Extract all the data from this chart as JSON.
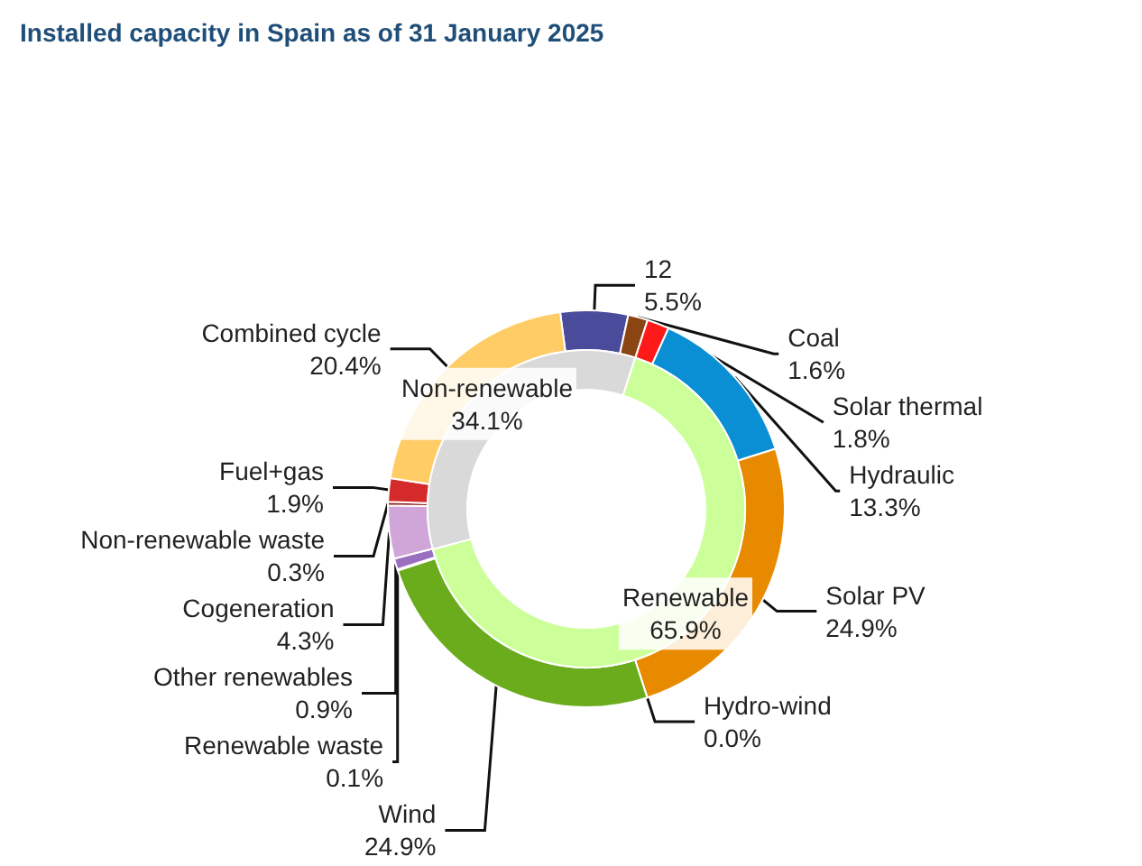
{
  "chart_data": [
    {
      "type": "donut",
      "title": "Installed capacity in Spain as of 31 January 2025",
      "categories": [
        "12",
        "Coal",
        "Solar thermal",
        "Hydraulic",
        "Solar PV",
        "Hydro-wind",
        "Wind",
        "Renewable waste",
        "Other renewables",
        "Cogeneration",
        "Non-renewable waste",
        "Fuel+gas",
        "Combined cycle"
      ],
      "values": [
        5.5,
        1.6,
        1.8,
        13.3,
        24.9,
        0.0,
        24.9,
        0.1,
        0.9,
        4.3,
        0.3,
        1.9,
        20.4
      ],
      "value_labels": [
        "5.5%",
        "1.6%",
        "1.8%",
        "13.3%",
        "24.9%",
        "0.0%",
        "24.9%",
        "0.1%",
        "0.9%",
        "4.3%",
        "0.3%",
        "1.9%",
        "20.4%"
      ],
      "colors": [
        "#4b4b9b",
        "#8b4513",
        "#ff1a1a",
        "#0a8fd4",
        "#e88a00",
        "#3a7bd5",
        "#6aac1c",
        "#7a5c2e",
        "#9a6fc0",
        "#d0a6d8",
        "#8b1a1a",
        "#d42a2a",
        "#ffcc66"
      ]
    },
    {
      "type": "donut",
      "categories": [
        "Non-renewable",
        "Renewable"
      ],
      "values": [
        34.1,
        65.9
      ],
      "value_labels": [
        "34.1%",
        "65.9%"
      ],
      "colors": [
        "#d9d9d9",
        "#ccff99"
      ]
    }
  ]
}
